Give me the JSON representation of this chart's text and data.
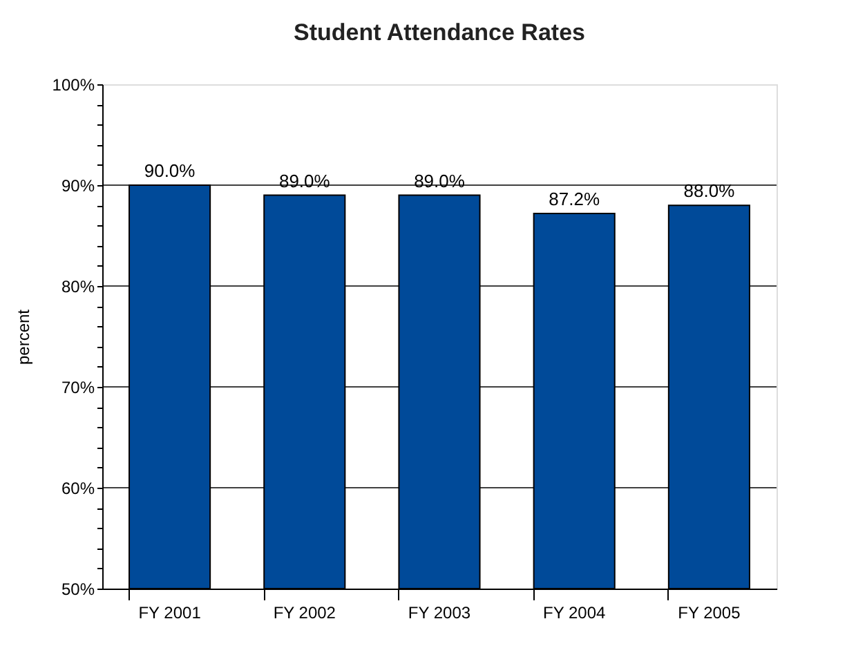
{
  "chart_data": {
    "type": "bar",
    "title": "Student Attendance Rates",
    "ylabel": "percent",
    "categories": [
      "FY 2001",
      "FY 2002",
      "FY 2003",
      "FY 2004",
      "FY 2005"
    ],
    "values": [
      90.0,
      89.0,
      89.0,
      87.2,
      88.0
    ],
    "value_labels": [
      "90.0%",
      "89.0%",
      "89.0%",
      "87.2%",
      "88.0%"
    ],
    "color": "#004a99",
    "ylim": [
      50,
      100
    ],
    "yticks": [
      {
        "value": 50,
        "label": "50%"
      },
      {
        "value": 52,
        "label": null
      },
      {
        "value": 54,
        "label": null
      },
      {
        "value": 56,
        "label": null
      },
      {
        "value": 58,
        "label": null
      },
      {
        "value": 60,
        "label": "60%"
      },
      {
        "value": 62,
        "label": null
      },
      {
        "value": 64,
        "label": null
      },
      {
        "value": 66,
        "label": null
      },
      {
        "value": 68,
        "label": null
      },
      {
        "value": 70,
        "label": "70%"
      },
      {
        "value": 72,
        "label": null
      },
      {
        "value": 74,
        "label": null
      },
      {
        "value": 76,
        "label": null
      },
      {
        "value": 78,
        "label": null
      },
      {
        "value": 80,
        "label": "80%"
      },
      {
        "value": 82,
        "label": null
      },
      {
        "value": 84,
        "label": null
      },
      {
        "value": 86,
        "label": null
      },
      {
        "value": 88,
        "label": null
      },
      {
        "value": 90,
        "label": "90%"
      },
      {
        "value": 92,
        "label": null
      },
      {
        "value": 94,
        "label": null
      },
      {
        "value": 96,
        "label": null
      },
      {
        "value": 98,
        "label": null
      },
      {
        "value": 100,
        "label": "100%"
      }
    ],
    "grid": "y"
  }
}
